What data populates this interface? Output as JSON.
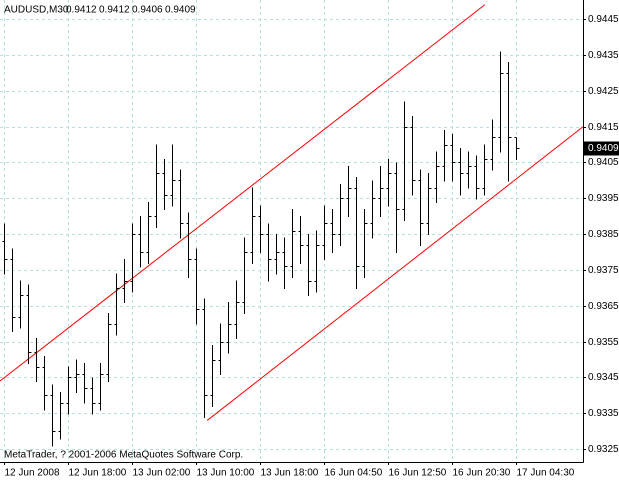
{
  "chart_data": {
    "type": "ohlc",
    "symbol": "AUDUSD,M30",
    "footer": "MetaTrader, ? 2001-2006 MetaQuotes Software Corp.",
    "categories": [
      "12 Jun 2008",
      null,
      null,
      null,
      null,
      null,
      null,
      null,
      "12 Jun 18:00",
      null,
      null,
      null,
      null,
      null,
      null,
      null,
      "13 Jun 02:00",
      null,
      null,
      null,
      null,
      null,
      null,
      null,
      "13 Jun 10:00",
      null,
      null,
      null,
      null,
      null,
      null,
      null,
      "13 Jun 18:00",
      null,
      null,
      null,
      null,
      null,
      null,
      null,
      "16 Jun 04:50",
      null,
      null,
      null,
      null,
      null,
      null,
      null,
      "16 Jun 12:50",
      null,
      null,
      null,
      null,
      null,
      null,
      null,
      "16 Jun 20:30",
      null,
      null,
      null,
      null,
      null,
      null,
      null,
      "17 Jun 04:30"
    ],
    "open": [
      0.9383,
      0.9378,
      0.9362,
      0.9368,
      0.9352,
      0.9348,
      0.934,
      0.933,
      0.9338,
      0.9345,
      0.9346,
      0.9342,
      0.9338,
      0.9346,
      0.936,
      0.937,
      0.9372,
      0.9385,
      0.938,
      0.939,
      0.9402,
      0.9396,
      0.94,
      0.9388,
      0.9378,
      0.9364,
      0.934,
      0.935,
      0.9355,
      0.936,
      0.9366,
      0.938,
      0.939,
      0.9385,
      0.9378,
      0.938,
      0.9376,
      0.9386,
      0.9382,
      0.9372,
      0.9382,
      0.9388,
      0.9385,
      0.9395,
      0.9398,
      0.9376,
      0.9388,
      0.9395,
      0.9398,
      0.9402,
      0.9392,
      0.9415,
      0.94,
      0.9388,
      0.9398,
      0.9404,
      0.941,
      0.9405,
      0.9402,
      0.9404,
      0.9398,
      0.9406,
      0.9412,
      0.943,
      0.9412
    ],
    "high": [
      0.9388,
      0.9381,
      0.9372,
      0.9371,
      0.9356,
      0.9351,
      0.9343,
      0.9341,
      0.9348,
      0.935,
      0.9349,
      0.9345,
      0.9349,
      0.9363,
      0.9374,
      0.9378,
      0.9388,
      0.939,
      0.9394,
      0.941,
      0.9406,
      0.941,
      0.9403,
      0.9391,
      0.9381,
      0.9367,
      0.9354,
      0.936,
      0.9366,
      0.9372,
      0.9384,
      0.9398,
      0.9393,
      0.9388,
      0.9385,
      0.9384,
      0.9392,
      0.939,
      0.9385,
      0.9386,
      0.9393,
      0.9392,
      0.9399,
      0.9404,
      0.9401,
      0.9392,
      0.94,
      0.9404,
      0.9406,
      0.9405,
      0.9422,
      0.9418,
      0.9403,
      0.9402,
      0.9408,
      0.9414,
      0.9413,
      0.9409,
      0.9408,
      0.9407,
      0.941,
      0.9417,
      0.9436,
      0.9433,
      0.9412
    ],
    "low": [
      0.9374,
      0.9358,
      0.9359,
      0.9349,
      0.9344,
      0.9336,
      0.9326,
      0.9328,
      0.9335,
      0.9341,
      0.9338,
      0.9335,
      0.9336,
      0.9344,
      0.9357,
      0.9366,
      0.9369,
      0.9376,
      0.9377,
      0.9387,
      0.9392,
      0.9393,
      0.9384,
      0.9373,
      0.936,
      0.9334,
      0.9337,
      0.9346,
      0.9352,
      0.9356,
      0.9363,
      0.9377,
      0.938,
      0.9372,
      0.9374,
      0.937,
      0.9373,
      0.9377,
      0.9368,
      0.9369,
      0.9378,
      0.938,
      0.9382,
      0.939,
      0.937,
      0.9373,
      0.9384,
      0.939,
      0.9393,
      0.938,
      0.9389,
      0.9396,
      0.9382,
      0.9385,
      0.9394,
      0.94,
      0.94,
      0.9396,
      0.9398,
      0.9395,
      0.9396,
      0.9403,
      0.9408,
      0.94,
      0.9406
    ],
    "close": [
      0.9378,
      0.9362,
      0.9368,
      0.9352,
      0.9348,
      0.934,
      0.933,
      0.9338,
      0.9345,
      0.9346,
      0.9342,
      0.9338,
      0.9346,
      0.936,
      0.937,
      0.9372,
      0.9385,
      0.938,
      0.939,
      0.9402,
      0.9396,
      0.94,
      0.9388,
      0.9378,
      0.9364,
      0.934,
      0.935,
      0.9355,
      0.936,
      0.9366,
      0.938,
      0.939,
      0.9385,
      0.9378,
      0.938,
      0.9376,
      0.9386,
      0.9382,
      0.9372,
      0.9382,
      0.9388,
      0.9385,
      0.9395,
      0.9398,
      0.9376,
      0.9388,
      0.9395,
      0.9398,
      0.9402,
      0.9392,
      0.9415,
      0.94,
      0.9388,
      0.9398,
      0.9404,
      0.941,
      0.9405,
      0.9402,
      0.9404,
      0.9398,
      0.9406,
      0.9412,
      0.943,
      0.9412,
      0.9409
    ],
    "color": "#000000",
    "ylim": [
      0.93214,
      0.94495
    ],
    "yticks": [
      0.9325,
      0.9335,
      0.9345,
      0.9355,
      0.9365,
      0.9375,
      0.9385,
      0.9395,
      0.9405,
      0.9415,
      0.9425,
      0.9435,
      0.9445
    ],
    "grid": true,
    "channels": [
      {
        "color": "#ff0000",
        "x": [
          -0.5,
          60.1
        ],
        "y": [
          0.9344,
          0.9449
        ]
      },
      {
        "color": "#ff0000",
        "x": [
          25.4,
          72.4
        ],
        "y": [
          0.9333,
          0.9415
        ]
      }
    ]
  }
}
